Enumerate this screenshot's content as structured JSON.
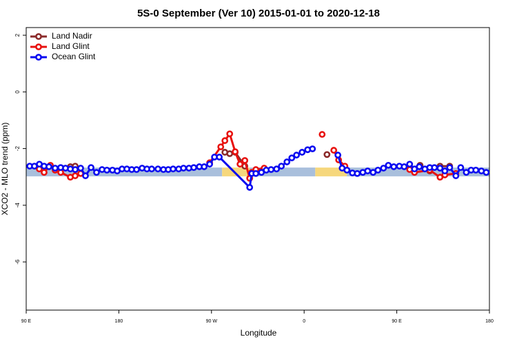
{
  "chart_data": {
    "type": "line",
    "title": "5S-0 September (Ver 10)   2015-01-01 to 2020-12-18",
    "xlabel": "Longitude",
    "ylabel": "XCO2 - MLO trend (ppm)",
    "xlim": [
      90,
      540
    ],
    "ylim": [
      -7.7,
      2.27
    ],
    "xticks": [
      {
        "value": 90,
        "label": "90 E"
      },
      180,
      {
        "value": 270,
        "label": "90 W"
      },
      {
        "value": 360,
        "label": "0"
      },
      {
        "value": 450,
        "label": "90 E"
      },
      {
        "value": 540,
        "label": "180"
      }
    ],
    "yticks": [
      -6,
      -4,
      -2,
      0,
      2
    ],
    "legend": "top-left",
    "bands": [
      {
        "xlim": [
          90,
          280.3
        ],
        "ylim": [
          -2.98,
          -2.67
        ],
        "color": "#a9bfdc"
      },
      {
        "xlim": [
          280.3,
          307
        ],
        "ylim": [
          -2.98,
          -2.67
        ],
        "color": "#f6d77c"
      },
      {
        "xlim": [
          307,
          370.8
        ],
        "ylim": [
          -2.98,
          -2.67
        ],
        "color": "#a9bfdc"
      },
      {
        "xlim": [
          370.8,
          401.6
        ],
        "ylim": [
          -2.98,
          -2.67
        ],
        "color": "#f6d77c"
      },
      {
        "xlim": [
          401.6,
          540
        ],
        "ylim": [
          -2.98,
          -2.67
        ],
        "color": "#a9bfdc"
      }
    ],
    "series": [
      {
        "name": "Land Nadir",
        "color": "#8b2a2a",
        "x": [
          118.1,
          132.9,
          137.6,
          200,
          283.0,
          287.7,
          293.0,
          302.4,
          340,
          382.2,
          420,
          462.5,
          472.6,
          482.0,
          492.0,
          501.4
        ],
        "values": [
          -2.72,
          -2.64,
          -2.62,
          null,
          -2.13,
          -2.18,
          -2.13,
          -2.62,
          null,
          -2.21,
          null,
          -2.72,
          -2.59,
          -2.79,
          -2.62,
          -2.62
        ]
      },
      {
        "name": "Land Glint",
        "color": "#e8120f",
        "x": [
          102.7,
          107.4,
          113.5,
          118.1,
          123.5,
          132.9,
          137.6,
          142.9,
          200,
          268.2,
          279.0,
          283.0,
          287.7,
          293.0,
          297.7,
          302.4,
          307.1,
          309.1,
          313.1,
          321.2,
          350,
          377.5,
          385,
          388.8,
          393.5,
          399.6,
          450,
          462.5,
          467.2,
          482.0,
          492.0,
          496.7,
          507.4
        ],
        "values": [
          -2.72,
          -2.84,
          -2.59,
          -2.76,
          -2.84,
          -3.01,
          -2.96,
          -2.88,
          null,
          -2.5,
          -1.94,
          -1.72,
          -1.48,
          -2.11,
          -2.55,
          -2.42,
          -3.05,
          -2.84,
          -2.74,
          -2.69,
          null,
          -1.5,
          null,
          -2.06,
          -2.4,
          -2.62,
          null,
          -2.74,
          -2.84,
          -2.76,
          -3.01,
          -2.93,
          -2.88
        ]
      },
      {
        "name": "Ocean Glint",
        "color": "#0a0af0",
        "x": [
          93.4,
          98.0,
          102.8,
          107.4,
          112.1,
          118.1,
          123.5,
          128.2,
          132.9,
          137.6,
          142.9,
          147.6,
          153.0,
          158.3,
          163.7,
          168.4,
          173.8,
          178.4,
          183.1,
          187.8,
          192.5,
          197.2,
          202.6,
          207.3,
          211.9,
          218.0,
          223.3,
          228.0,
          232.7,
          238.1,
          242.8,
          248.1,
          252.8,
          258.2,
          262.9,
          268.2,
          272.9,
          277.6,
          307.1,
          309.1,
          313.1,
          318.5,
          323.2,
          327.9,
          333.2,
          337.9,
          343.3,
          348.0,
          352.6,
          358.0,
          363.4,
          368.1,
          380,
          392.8,
          396.9,
          401.6,
          406.9,
          411.6,
          417.0,
          421.7,
          427.0,
          431.7,
          437.1,
          441.8,
          447.1,
          452.5,
          457.2,
          462.5,
          467.2,
          471.9,
          477.3,
          482.0,
          486.6,
          492.0,
          496.7,
          501.4,
          507.4,
          512.1,
          517.5,
          522.2,
          526.8,
          532.2,
          536.9
        ],
        "values": [
          -2.62,
          -2.62,
          -2.55,
          -2.62,
          -2.64,
          -2.69,
          -2.67,
          -2.69,
          -2.72,
          -2.74,
          -2.69,
          -2.96,
          -2.67,
          -2.84,
          -2.74,
          -2.76,
          -2.76,
          -2.79,
          -2.72,
          -2.72,
          -2.74,
          -2.74,
          -2.69,
          -2.72,
          -2.72,
          -2.72,
          -2.74,
          -2.74,
          -2.72,
          -2.72,
          -2.69,
          -2.69,
          -2.67,
          -2.64,
          -2.64,
          -2.55,
          -2.3,
          -2.3,
          -3.37,
          -2.88,
          -2.88,
          -2.84,
          -2.76,
          -2.74,
          -2.72,
          -2.62,
          -2.47,
          -2.33,
          -2.23,
          -2.13,
          -2.04,
          -2.01,
          null,
          -2.23,
          -2.69,
          -2.76,
          -2.86,
          -2.88,
          -2.84,
          -2.79,
          -2.84,
          -2.76,
          -2.69,
          -2.59,
          -2.64,
          -2.62,
          -2.64,
          -2.55,
          -2.72,
          -2.64,
          -2.72,
          -2.67,
          -2.67,
          -2.69,
          -2.79,
          -2.67,
          -2.96,
          -2.67,
          -2.84,
          -2.76,
          -2.76,
          -2.79,
          -2.84
        ]
      }
    ]
  }
}
